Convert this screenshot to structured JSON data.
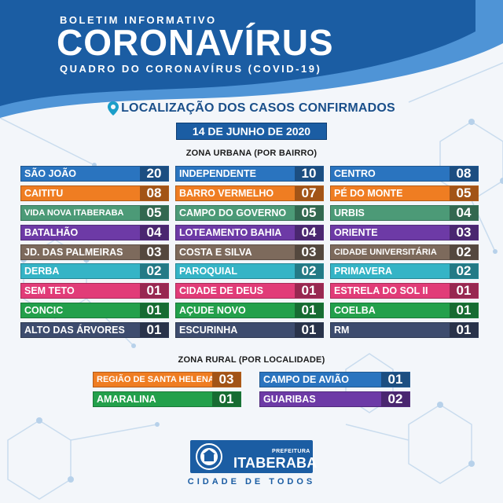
{
  "header": {
    "subtitle_top": "BOLETIM INFORMATIVO",
    "title": "CORONAVÍRUS",
    "subtitle_bottom": "QUADRO DO CORONAVÍRUS (COVID-19)"
  },
  "location": {
    "title": "LOCALIZAÇÃO DOS CASOS CONFIRMADOS",
    "icon": "location-pin-icon",
    "date": "14 DE JUNHO DE 2020"
  },
  "urban": {
    "title": "ZONA URBANA (POR BAIRRO)",
    "items": [
      {
        "name": "SÃO JOÃO",
        "count": "20",
        "color": "#2a74bf"
      },
      {
        "name": "INDEPENDENTE",
        "count": "10",
        "color": "#2a74bf"
      },
      {
        "name": "CENTRO",
        "count": "08",
        "color": "#2a74bf"
      },
      {
        "name": "CAITITU",
        "count": "08",
        "color": "#ef7d22"
      },
      {
        "name": "BARRO VERMELHO",
        "count": "07",
        "color": "#ef7d22"
      },
      {
        "name": "PÉ DO MONTE",
        "count": "05",
        "color": "#ef7d22"
      },
      {
        "name": "VIDA NOVA ITABERABA",
        "count": "05",
        "color": "#4c9a77"
      },
      {
        "name": "CAMPO DO GOVERNO",
        "count": "05",
        "color": "#4c9a77"
      },
      {
        "name": "URBIS",
        "count": "04",
        "color": "#4c9a77"
      },
      {
        "name": "BATALHÃO",
        "count": "04",
        "color": "#6d3aa6"
      },
      {
        "name": "LOTEAMENTO BAHIA",
        "count": "04",
        "color": "#6d3aa6"
      },
      {
        "name": "ORIENTE",
        "count": "03",
        "color": "#6d3aa6"
      },
      {
        "name": "JD. DAS PALMEIRAS",
        "count": "03",
        "color": "#7d6a5c"
      },
      {
        "name": "COSTA E SILVA",
        "count": "03",
        "color": "#7d6a5c"
      },
      {
        "name": "CIDADE UNIVERSITÁRIA",
        "count": "02",
        "color": "#7d6a5c"
      },
      {
        "name": "DERBA",
        "count": "02",
        "color": "#35b4c6"
      },
      {
        "name": "PAROQUIAL",
        "count": "02",
        "color": "#35b4c6"
      },
      {
        "name": "PRIMAVERA",
        "count": "02",
        "color": "#35b4c6"
      },
      {
        "name": "SEM TETO",
        "count": "01",
        "color": "#e13c78"
      },
      {
        "name": "CIDADE DE DEUS",
        "count": "01",
        "color": "#e13c78"
      },
      {
        "name": "ESTRELA DO SOL II",
        "count": "01",
        "color": "#e13c78"
      },
      {
        "name": "CONCIC",
        "count": "01",
        "color": "#23a04b"
      },
      {
        "name": "AÇUDE NOVO",
        "count": "01",
        "color": "#23a04b"
      },
      {
        "name": "COELBA",
        "count": "01",
        "color": "#23a04b"
      },
      {
        "name": "ALTO DAS ÁRVORES",
        "count": "01",
        "color": "#3d4c6e"
      },
      {
        "name": "ESCURINHA",
        "count": "01",
        "color": "#3d4c6e"
      },
      {
        "name": "RM",
        "count": "01",
        "color": "#3d4c6e"
      }
    ]
  },
  "rural": {
    "title": "ZONA RURAL (POR LOCALIDADE)",
    "items": [
      {
        "name": "REGIÃO DE SANTA HELENA",
        "count": "03",
        "color": "#ef7d22"
      },
      {
        "name": "CAMPO DE AVIÃO",
        "count": "01",
        "color": "#2a74bf"
      },
      {
        "name": "AMARALINA",
        "count": "01",
        "color": "#23a04b"
      },
      {
        "name": "GUARIBAS",
        "count": "02",
        "color": "#6d3aa6"
      }
    ]
  },
  "logo": {
    "prefix": "PREFEITURA",
    "name": "ITABERABA",
    "tagline": "CIDADE DE TODOS",
    "emblem": "city-seal-icon"
  },
  "colors": {
    "header_blue": "#1b5da3",
    "header_light": "#4f94d6",
    "title_navy": "#1a4f8a"
  }
}
